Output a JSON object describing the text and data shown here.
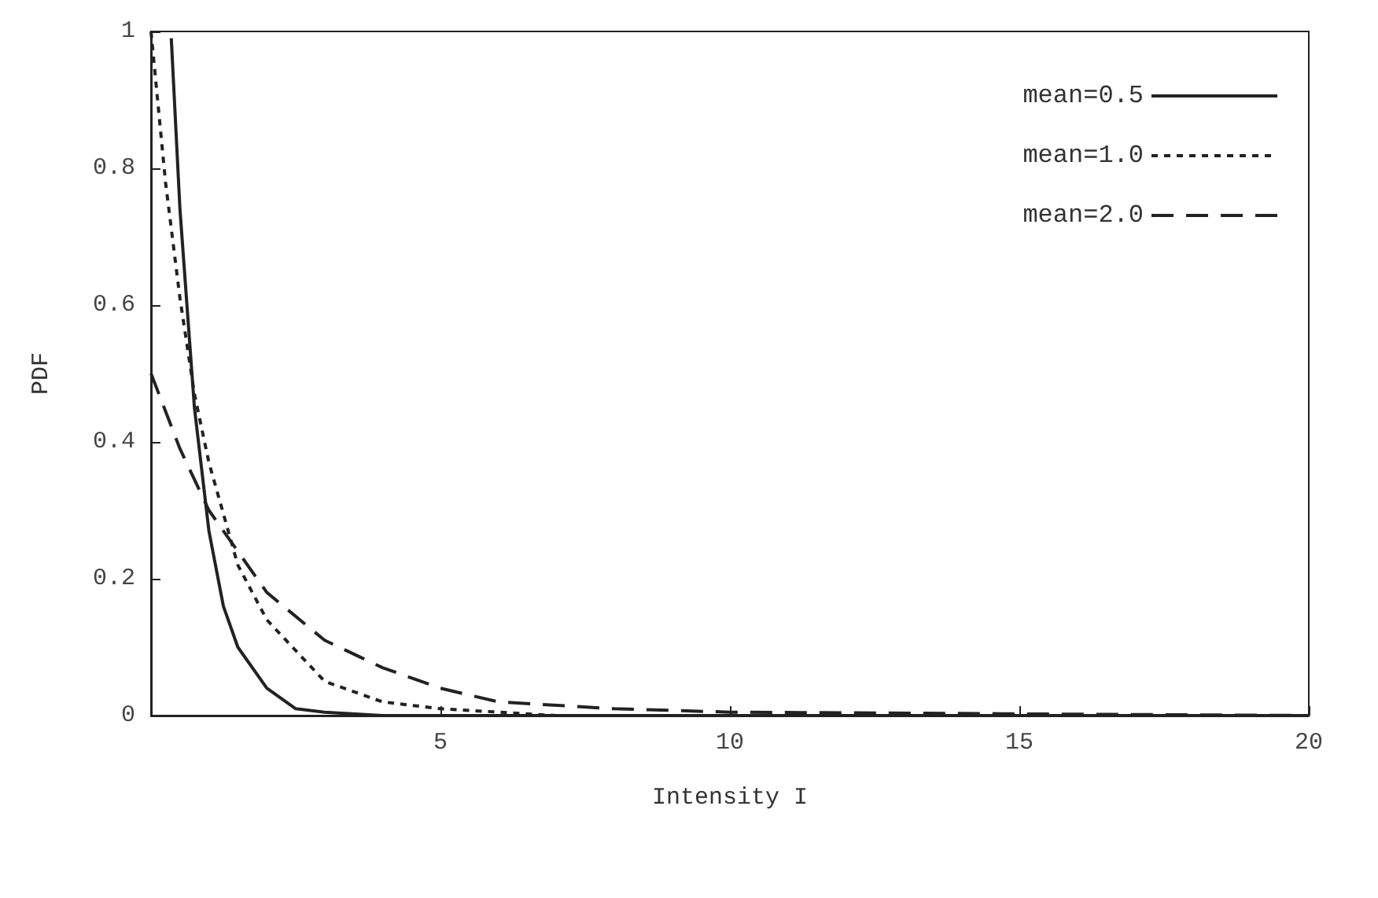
{
  "chart_data": {
    "type": "line",
    "xlabel": "Intensity I",
    "ylabel": "PDF",
    "xlim": [
      0,
      20
    ],
    "xticks": [
      {
        "value": 0,
        "label": null
      },
      5,
      10,
      15,
      20
    ],
    "ylim": [
      0,
      1
    ],
    "yticks": [
      0,
      0.2,
      0.4,
      0.6,
      0.8,
      1
    ],
    "grid": false,
    "legend": "top right",
    "marker": "none",
    "series": [
      {
        "name": "mean=0.5",
        "color": "#222222",
        "line_style": "solid",
        "x": [
          0.35,
          0.5,
          0.75,
          1,
          1.25,
          1.5,
          2,
          2.5,
          3,
          4,
          5,
          20
        ],
        "values": [
          0.99,
          0.74,
          0.45,
          0.27,
          0.16,
          0.1,
          0.04,
          0.01,
          0.005,
          0,
          0,
          0
        ]
      },
      {
        "name": "mean=1.0",
        "color": "#222222",
        "line_style": "dotted",
        "x": [
          0,
          0.25,
          0.5,
          0.75,
          1,
          1.5,
          2,
          3,
          4,
          5,
          7,
          20
        ],
        "values": [
          1,
          0.78,
          0.61,
          0.47,
          0.37,
          0.22,
          0.14,
          0.05,
          0.02,
          0.01,
          0,
          0
        ]
      },
      {
        "name": "mean=2.0",
        "color": "#222222",
        "line_style": "dashed",
        "x": [
          0,
          0.5,
          1,
          1.5,
          2,
          3,
          4,
          5,
          6,
          8,
          10,
          20
        ],
        "values": [
          0.5,
          0.39,
          0.3,
          0.24,
          0.18,
          0.11,
          0.07,
          0.04,
          0.02,
          0.01,
          0.005,
          0
        ]
      }
    ]
  }
}
